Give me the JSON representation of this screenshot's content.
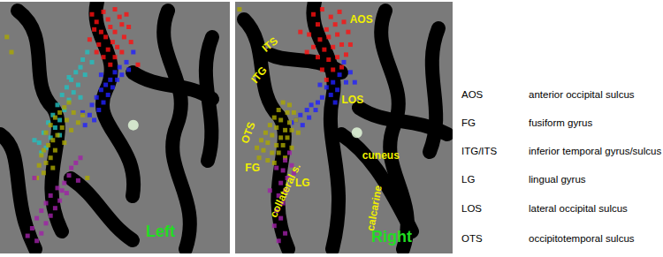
{
  "chart_data": [
    {
      "type": "scatter",
      "title": "Left",
      "xlim": [
        0,
        100
      ],
      "ylim": [
        0,
        100
      ],
      "tick_labels": false,
      "grid": false,
      "series": [
        {
          "color": "#ff1010",
          "marker": "square",
          "values": [
            [
              40,
              5
            ],
            [
              42,
              8
            ],
            [
              45,
              4
            ],
            [
              47,
              7
            ],
            [
              50,
              3
            ],
            [
              52,
              6
            ],
            [
              48,
              10
            ],
            [
              44,
              12
            ],
            [
              46,
              14
            ],
            [
              50,
              12
            ],
            [
              53,
              9
            ],
            [
              55,
              5
            ],
            [
              49,
              16
            ],
            [
              43,
              17
            ],
            [
              47,
              19
            ],
            [
              51,
              18
            ],
            [
              54,
              14
            ],
            [
              41,
              11
            ],
            [
              56,
              10
            ],
            [
              45,
              22
            ],
            [
              50,
              22
            ],
            [
              53,
              20
            ],
            [
              39,
              15
            ],
            [
              57,
              16
            ],
            [
              48,
              25
            ],
            [
              60,
              25
            ],
            [
              42,
              20
            ]
          ]
        },
        {
          "color": "#2020ff",
          "marker": "square",
          "values": [
            [
              58,
              20
            ],
            [
              55,
              24
            ],
            [
              52,
              26
            ],
            [
              50,
              28
            ],
            [
              53,
              29
            ],
            [
              48,
              31
            ],
            [
              46,
              33
            ],
            [
              49,
              34
            ],
            [
              44,
              35
            ],
            [
              47,
              37
            ],
            [
              42,
              38
            ],
            [
              45,
              40
            ],
            [
              40,
              41
            ],
            [
              43,
              43
            ],
            [
              39,
              45
            ],
            [
              41,
              47
            ],
            [
              37,
              49
            ],
            [
              44,
              29
            ],
            [
              36,
              44
            ],
            [
              56,
              27
            ],
            [
              51,
              31
            ]
          ]
        },
        {
          "color": "#20c0c0",
          "marker": "square",
          "values": [
            [
              38,
              20
            ],
            [
              36,
              23
            ],
            [
              35,
              26
            ],
            [
              33,
              28
            ],
            [
              37,
              29
            ],
            [
              31,
              31
            ],
            [
              34,
              33
            ],
            [
              29,
              34
            ],
            [
              32,
              36
            ],
            [
              27,
              37
            ],
            [
              30,
              39
            ],
            [
              25,
              41
            ],
            [
              28,
              43
            ],
            [
              23,
              45
            ],
            [
              26,
              47
            ],
            [
              21,
              48
            ],
            [
              24,
              50
            ],
            [
              19,
              52
            ],
            [
              22,
              54
            ],
            [
              17,
              56
            ],
            [
              20,
              58
            ],
            [
              40,
              24
            ],
            [
              30,
              30
            ],
            [
              35,
              38
            ],
            [
              18,
              60
            ],
            [
              15,
              55
            ],
            [
              26,
              53
            ]
          ]
        },
        {
          "color": "#aaa800",
          "marker": "square",
          "values": [
            [
              30,
              40
            ],
            [
              28,
              42
            ],
            [
              26,
              44
            ],
            [
              32,
              44
            ],
            [
              24,
              46
            ],
            [
              29,
              47
            ],
            [
              22,
              49
            ],
            [
              27,
              50
            ],
            [
              31,
              51
            ],
            [
              20,
              52
            ],
            [
              25,
              53
            ],
            [
              23,
              55
            ],
            [
              28,
              56
            ],
            [
              21,
              57
            ],
            [
              19,
              59
            ],
            [
              24,
              59
            ],
            [
              18,
              61
            ],
            [
              22,
              62
            ],
            [
              20,
              64
            ],
            [
              17,
              65
            ],
            [
              23,
              66
            ],
            [
              19,
              68
            ],
            [
              34,
              48
            ],
            [
              16,
              70
            ],
            [
              36,
              45
            ],
            [
              38,
              70
            ],
            [
              5,
              20
            ],
            [
              3,
              14
            ]
          ]
        },
        {
          "color": "#a020a8",
          "marker": "square",
          "values": [
            [
              35,
              62
            ],
            [
              33,
              64
            ],
            [
              31,
              66
            ],
            [
              30,
              69
            ],
            [
              34,
              71
            ],
            [
              28,
              72
            ],
            [
              25,
              74
            ],
            [
              29,
              76
            ],
            [
              22,
              77
            ],
            [
              26,
              79
            ],
            [
              20,
              80
            ],
            [
              24,
              82
            ],
            [
              18,
              83
            ],
            [
              22,
              85
            ],
            [
              16,
              86
            ],
            [
              20,
              88
            ],
            [
              14,
              90
            ],
            [
              18,
              92
            ],
            [
              12,
              93
            ],
            [
              16,
              95
            ],
            [
              27,
              75
            ],
            [
              15,
              70
            ]
          ]
        },
        {
          "color": "#e8ffe0",
          "marker": "circle",
          "values": [
            [
              58,
              49
            ]
          ]
        }
      ]
    },
    {
      "type": "scatter",
      "title": "Right",
      "xlim": [
        0,
        100
      ],
      "ylim": [
        0,
        100
      ],
      "tick_labels": false,
      "grid": false,
      "annotations": [
        "AOS",
        "ITS",
        "ITG",
        "LOS",
        "OTS",
        "FG",
        "collateral s.",
        "LG",
        "cuneus",
        "calcarine"
      ],
      "series": [
        {
          "color": "#ff1010",
          "marker": "square",
          "values": [
            [
              36,
              5
            ],
            [
              40,
              3
            ],
            [
              44,
              6
            ],
            [
              48,
              4
            ],
            [
              38,
              9
            ],
            [
              42,
              11
            ],
            [
              46,
              9
            ],
            [
              50,
              8
            ],
            [
              34,
              13
            ],
            [
              39,
              15
            ],
            [
              43,
              14
            ],
            [
              47,
              13
            ],
            [
              52,
              12
            ],
            [
              36,
              18
            ],
            [
              41,
              19
            ],
            [
              45,
              18
            ],
            [
              49,
              17
            ],
            [
              38,
              22
            ],
            [
              43,
              23
            ],
            [
              47,
              22
            ],
            [
              51,
              21
            ],
            [
              40,
              27
            ],
            [
              45,
              27
            ],
            [
              49,
              26
            ],
            [
              42,
              31
            ],
            [
              33,
              20
            ],
            [
              53,
              17
            ],
            [
              30,
              12
            ]
          ]
        },
        {
          "color": "#2020ff",
          "marker": "square",
          "values": [
            [
              50,
              24
            ],
            [
              53,
              28
            ],
            [
              48,
              29
            ],
            [
              51,
              32
            ],
            [
              45,
              32
            ],
            [
              47,
              35
            ],
            [
              42,
              34
            ],
            [
              44,
              37
            ],
            [
              40,
              38
            ],
            [
              38,
              40
            ],
            [
              35,
              41
            ],
            [
              37,
              43
            ],
            [
              33,
              43
            ],
            [
              30,
              45
            ],
            [
              34,
              46
            ],
            [
              28,
              47
            ],
            [
              26,
              48
            ],
            [
              31,
              49
            ],
            [
              55,
              32
            ],
            [
              46,
              40
            ],
            [
              39,
              33
            ]
          ]
        },
        {
          "color": "#aaa800",
          "marker": "square",
          "values": [
            [
              22,
              40
            ],
            [
              25,
              41
            ],
            [
              20,
              43
            ],
            [
              24,
              44
            ],
            [
              27,
              44
            ],
            [
              18,
              46
            ],
            [
              21,
              47
            ],
            [
              25,
              48
            ],
            [
              28,
              47
            ],
            [
              16,
              49
            ],
            [
              19,
              50
            ],
            [
              23,
              51
            ],
            [
              26,
              51
            ],
            [
              14,
              52
            ],
            [
              17,
              53
            ],
            [
              21,
              54
            ],
            [
              24,
              54
            ],
            [
              12,
              55
            ],
            [
              15,
              56
            ],
            [
              19,
              57
            ],
            [
              22,
              57
            ],
            [
              13,
              59
            ],
            [
              17,
              60
            ],
            [
              20,
              60
            ],
            [
              11,
              62
            ],
            [
              15,
              63
            ],
            [
              18,
              64
            ],
            [
              23,
              62
            ],
            [
              26,
              58
            ],
            [
              10,
              58
            ],
            [
              2,
              3
            ],
            [
              29,
              52
            ]
          ]
        },
        {
          "color": "#a020a8",
          "marker": "square",
          "values": [
            [
              25,
              60
            ],
            [
              23,
              63
            ],
            [
              26,
              65
            ],
            [
              22,
              67
            ],
            [
              24,
              70
            ],
            [
              21,
              72
            ],
            [
              23,
              75
            ],
            [
              20,
              77
            ],
            [
              22,
              80
            ],
            [
              19,
              83
            ],
            [
              21,
              86
            ],
            [
              18,
              89
            ],
            [
              23,
              92
            ],
            [
              20,
              95
            ],
            [
              16,
              75
            ],
            [
              27,
              68
            ],
            [
              19,
              66
            ]
          ]
        },
        {
          "color": "#e8ffe0",
          "marker": "circle",
          "values": [
            [
              56,
              52
            ]
          ]
        }
      ]
    }
  ],
  "key": [
    {
      "abbreviation": "AOS",
      "meaning": "anterior occipital sulcus"
    },
    {
      "abbreviation": "FG",
      "meaning": "fusiform gyrus"
    },
    {
      "abbreviation": "ITG/ITS",
      "meaning": "inferior temporal gyrus/sulcus"
    },
    {
      "abbreviation": "LG",
      "meaning": "lingual gyrus"
    },
    {
      "abbreviation": "LOS",
      "meaning": "lateral occipital sulcus"
    },
    {
      "abbreviation": "OTS",
      "meaning": "occipitotemporal sulcus"
    }
  ]
}
